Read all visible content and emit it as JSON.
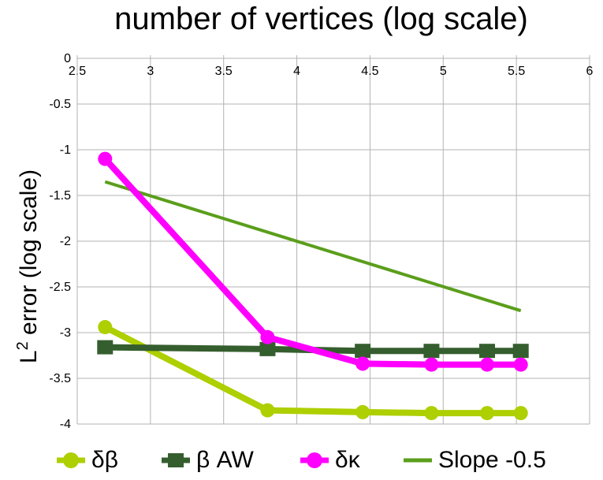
{
  "chart_data": {
    "type": "line",
    "title": "number of vertices (log scale)",
    "xlabel": "number of vertices (log scale)",
    "ylabel_base": "L",
    "ylabel_sup": "2",
    "ylabel_rest": " error (log scale)",
    "xlim": [
      2.5,
      6
    ],
    "ylim": [
      -4,
      0
    ],
    "xticks": [
      "2.5",
      "3",
      "3.5",
      "4",
      "4.5",
      "5",
      "5.5",
      "6"
    ],
    "yticks": [
      "0",
      "-0.5",
      "-1",
      "-1.5",
      "-2",
      "-2.5",
      "-3",
      "-3.5",
      "-4"
    ],
    "grid": true,
    "x_axis_position": "top",
    "legend_position": "bottom",
    "series": [
      {
        "name": "δβ",
        "marker": "circle",
        "color": "#AECF00",
        "x": [
          2.69,
          3.8,
          4.45,
          4.92,
          5.3,
          5.53
        ],
        "y": [
          -2.94,
          -3.85,
          -3.87,
          -3.88,
          -3.88,
          -3.88
        ]
      },
      {
        "name": "β AW",
        "marker": "square",
        "color": "#355E2E",
        "x": [
          2.69,
          3.8,
          4.45,
          4.92,
          5.3,
          5.53
        ],
        "y": [
          -3.16,
          -3.18,
          -3.2,
          -3.2,
          -3.2,
          -3.2
        ]
      },
      {
        "name": "δκ",
        "marker": "circle",
        "color": "#FF00FF",
        "x": [
          2.69,
          3.8,
          4.45,
          4.92,
          5.3,
          5.53
        ],
        "y": [
          -1.1,
          -3.05,
          -3.34,
          -3.35,
          -3.35,
          -3.35
        ]
      },
      {
        "name": "Slope -0.5",
        "marker": "none",
        "color": "#5A9E1B",
        "x": [
          2.69,
          5.53
        ],
        "y": [
          -1.35,
          -2.76
        ]
      }
    ]
  }
}
